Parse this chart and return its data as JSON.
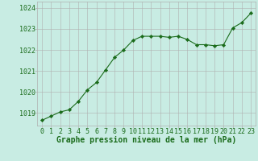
{
  "x": [
    0,
    1,
    2,
    3,
    4,
    5,
    6,
    7,
    8,
    9,
    10,
    11,
    12,
    13,
    14,
    15,
    16,
    17,
    18,
    19,
    20,
    21,
    22,
    23
  ],
  "y": [
    1018.65,
    1018.85,
    1019.05,
    1019.15,
    1019.55,
    1020.1,
    1020.45,
    1021.05,
    1021.65,
    1022.0,
    1022.45,
    1022.65,
    1022.65,
    1022.65,
    1022.6,
    1022.65,
    1022.5,
    1022.25,
    1022.25,
    1022.2,
    1022.25,
    1023.05,
    1023.3,
    1023.75
  ],
  "line_color": "#1a6b1a",
  "marker_color": "#1a6b1a",
  "bg_color": "#c8ece3",
  "grid_color": "#b0b0b0",
  "xlabel": "Graphe pression niveau de la mer (hPa)",
  "xlabel_color": "#1a6b1a",
  "tick_color": "#1a6b1a",
  "ylim": [
    1018.4,
    1024.3
  ],
  "yticks": [
    1019,
    1020,
    1021,
    1022,
    1023,
    1024
  ],
  "xticks": [
    0,
    1,
    2,
    3,
    4,
    5,
    6,
    7,
    8,
    9,
    10,
    11,
    12,
    13,
    14,
    15,
    16,
    17,
    18,
    19,
    20,
    21,
    22,
    23
  ],
  "tick_fontsize": 6,
  "xlabel_fontsize": 7
}
